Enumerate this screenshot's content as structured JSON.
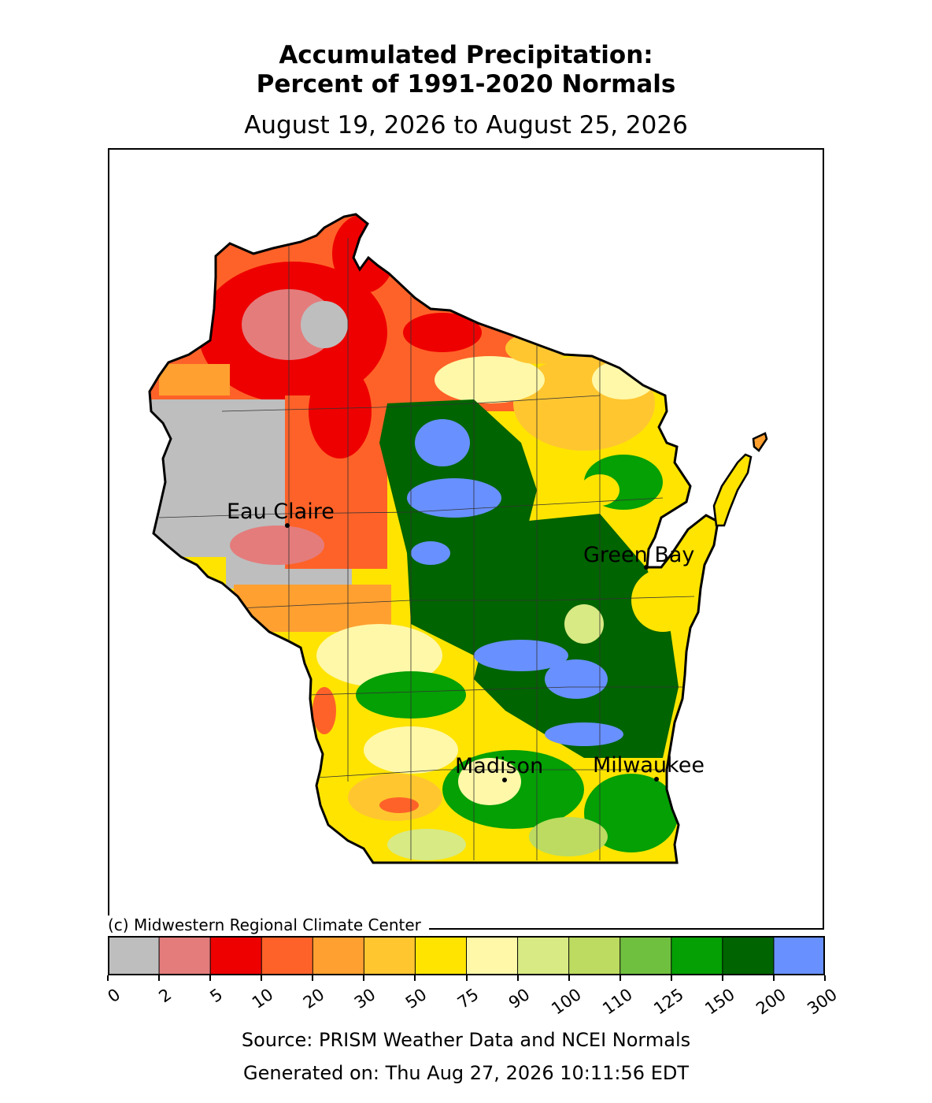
{
  "title_line1": "Accumulated Precipitation:",
  "title_line2": "Percent of 1991-2020 Normals",
  "date_range": "August 19, 2026 to August 25, 2026",
  "copyright": "(c) Midwestern Regional Climate Center",
  "source": "Source: PRISM Weather Data and NCEI Normals",
  "generated": "Generated on: Thu Aug 27, 2026 10:11:56 EDT",
  "cities": [
    {
      "name": "Eau Claire"
    },
    {
      "name": "Green Bay"
    },
    {
      "name": "Madison"
    },
    {
      "name": "Milwaukee"
    }
  ],
  "legend": {
    "ticks": [
      "0",
      "2",
      "5",
      "10",
      "20",
      "30",
      "50",
      "75",
      "90",
      "100",
      "110",
      "125",
      "150",
      "200",
      "300"
    ],
    "colors": [
      "#bebebe",
      "#e47c7c",
      "#ee0000",
      "#ff6228",
      "#ffa030",
      "#ffc630",
      "#ffe400",
      "#fff8a8",
      "#d8ea84",
      "#bcdb60",
      "#70c040",
      "#04a004",
      "#006400",
      "#6890ff"
    ]
  }
}
